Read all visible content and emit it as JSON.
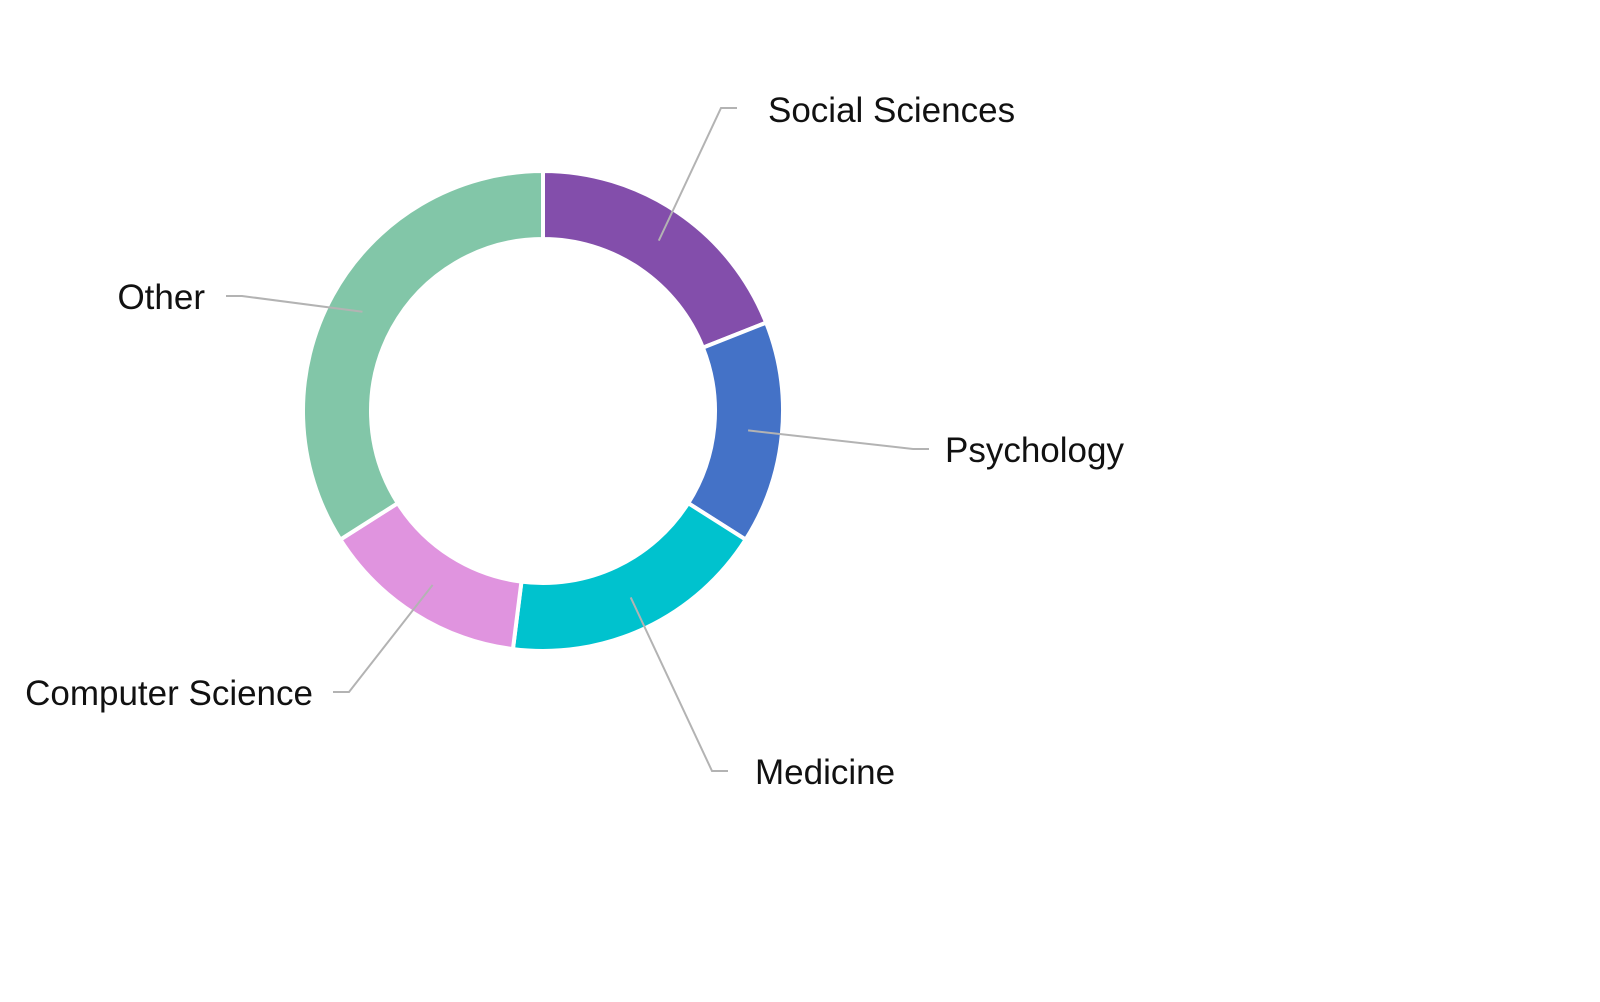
{
  "chart_data": {
    "type": "pie",
    "donut": true,
    "title": "",
    "series": [
      {
        "name": "",
        "labels": [
          "Social Sciences",
          "Psychology",
          "Medicine",
          "Computer Science",
          "Other"
        ],
        "values": [
          19,
          15,
          18,
          14,
          34
        ]
      }
    ],
    "slices": [
      {
        "label": "Social Sciences",
        "value": 19,
        "color": "#834EAB"
      },
      {
        "label": "Psychology",
        "value": 15,
        "color": "#4472C7"
      },
      {
        "label": "Medicine",
        "value": 18,
        "color": "#00C2CE"
      },
      {
        "label": "Computer Science",
        "value": 14,
        "color": "#E094DF"
      },
      {
        "label": "Other",
        "value": 34,
        "color": "#82C6A8"
      }
    ],
    "start_angle_deg": 0,
    "direction": "clockwise",
    "legend": "none",
    "labels_position": "outside-with-leaders"
  }
}
